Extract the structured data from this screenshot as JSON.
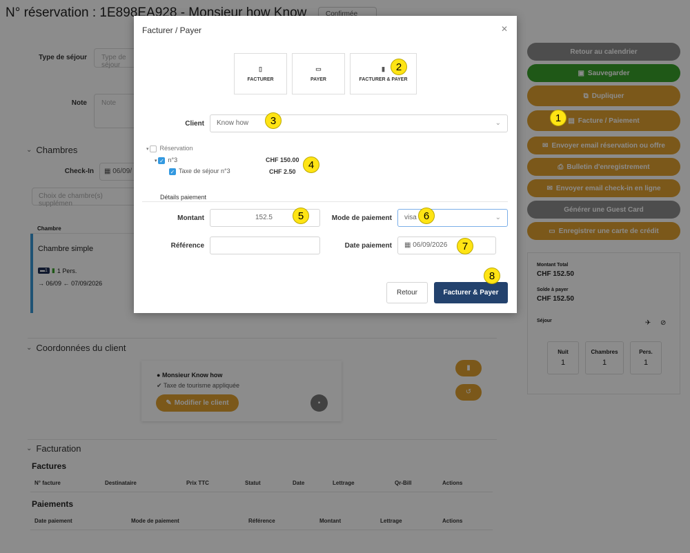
{
  "page": {
    "title": "N° réservation : 1E898EA928 - Monsieur how Know",
    "status": "Confirmée"
  },
  "form": {
    "type_sejour_label": "Type de séjour",
    "type_sejour_placeholder": "Type de séjour",
    "note_label": "Note",
    "note_placeholder": "Note"
  },
  "rooms": {
    "section": "Chambres",
    "checkin_label": "Check-In",
    "checkin_value": "06/09/",
    "choice_placeholder": "Choix de chambre(s) supplémen",
    "col_header": "Chambre",
    "room_name": "Chambre simple",
    "persons": "1 Pers.",
    "dates": "06/09",
    "dates_end": "07/09/2026"
  },
  "client": {
    "section": "Coordonnées du client",
    "name": "Monsieur  Know how",
    "tax_note": "Taxe de tourisme appliquée",
    "edit_button": "Modifier le client"
  },
  "billing": {
    "section": "Facturation",
    "invoices_title": "Factures",
    "invoice_headers": [
      "N° facture",
      "Destinataire",
      "Prix TTC",
      "Statut",
      "Date",
      "Lettrage",
      "Qr-Bill",
      "Actions"
    ],
    "payments_title": "Paiements",
    "payment_headers": [
      "Date paiement",
      "Mode de paiement",
      "Référence",
      "Montant",
      "Lettrage",
      "Actions"
    ]
  },
  "sidebar": {
    "buttons": [
      {
        "label": "Retour au calendrier",
        "style": "grey",
        "icon": ""
      },
      {
        "label": "Sauvegarder",
        "style": "green",
        "icon": "save-icon"
      },
      {
        "label": "Dupliquer",
        "style": "orange",
        "icon": "copy-icon"
      },
      {
        "label": "Facture / Paiement",
        "style": "orange",
        "icon": "invoice-icon"
      },
      {
        "label": "Envoyer email réservation ou offre",
        "style": "orange",
        "icon": "mail-icon"
      },
      {
        "label": "Bulletin d'enregistrement",
        "style": "orange",
        "icon": "print-icon"
      },
      {
        "label": "Envoyer email check-in en ligne",
        "style": "orange",
        "icon": "mail-icon"
      },
      {
        "label": "Générer une Guest Card",
        "style": "grey",
        "icon": ""
      },
      {
        "label": "Enregistrer une carte de crédit",
        "style": "orange",
        "icon": "card-icon"
      }
    ]
  },
  "summary": {
    "total_label": "Montant Total",
    "total_value": "CHF 152.50",
    "balance_label": "Solde à payer",
    "balance_value": "CHF 152.50",
    "stay_label": "Séjour",
    "nights_label": "Nuit",
    "nights_value": "1",
    "rooms_label": "Chambres",
    "rooms_value": "1",
    "pers_label": "Pers.",
    "pers_value": "1"
  },
  "modal": {
    "title": "Facturer / Payer",
    "options": [
      "FACTURER",
      "PAYER",
      "FACTURER & PAYER"
    ],
    "client_label": "Client",
    "client_value": "Know how",
    "tree_root": "Réservation",
    "tree_item": "n°3",
    "tree_item_amount": "CHF 150.00",
    "tree_tax": "Taxe de séjour n°3",
    "tree_tax_amount": "CHF 2.50",
    "details_legend": "Détails paiement",
    "amount_label": "Montant",
    "amount_value": "152.5",
    "mode_label": "Mode de paiement",
    "mode_value": "visa",
    "ref_label": "Référence",
    "ref_value": "",
    "date_label": "Date paiement",
    "date_value": "06/09/2026",
    "back_button": "Retour",
    "submit_button": "Facturer & Payer"
  },
  "callouts": [
    "1",
    "2",
    "3",
    "4",
    "5",
    "6",
    "7",
    "8"
  ]
}
